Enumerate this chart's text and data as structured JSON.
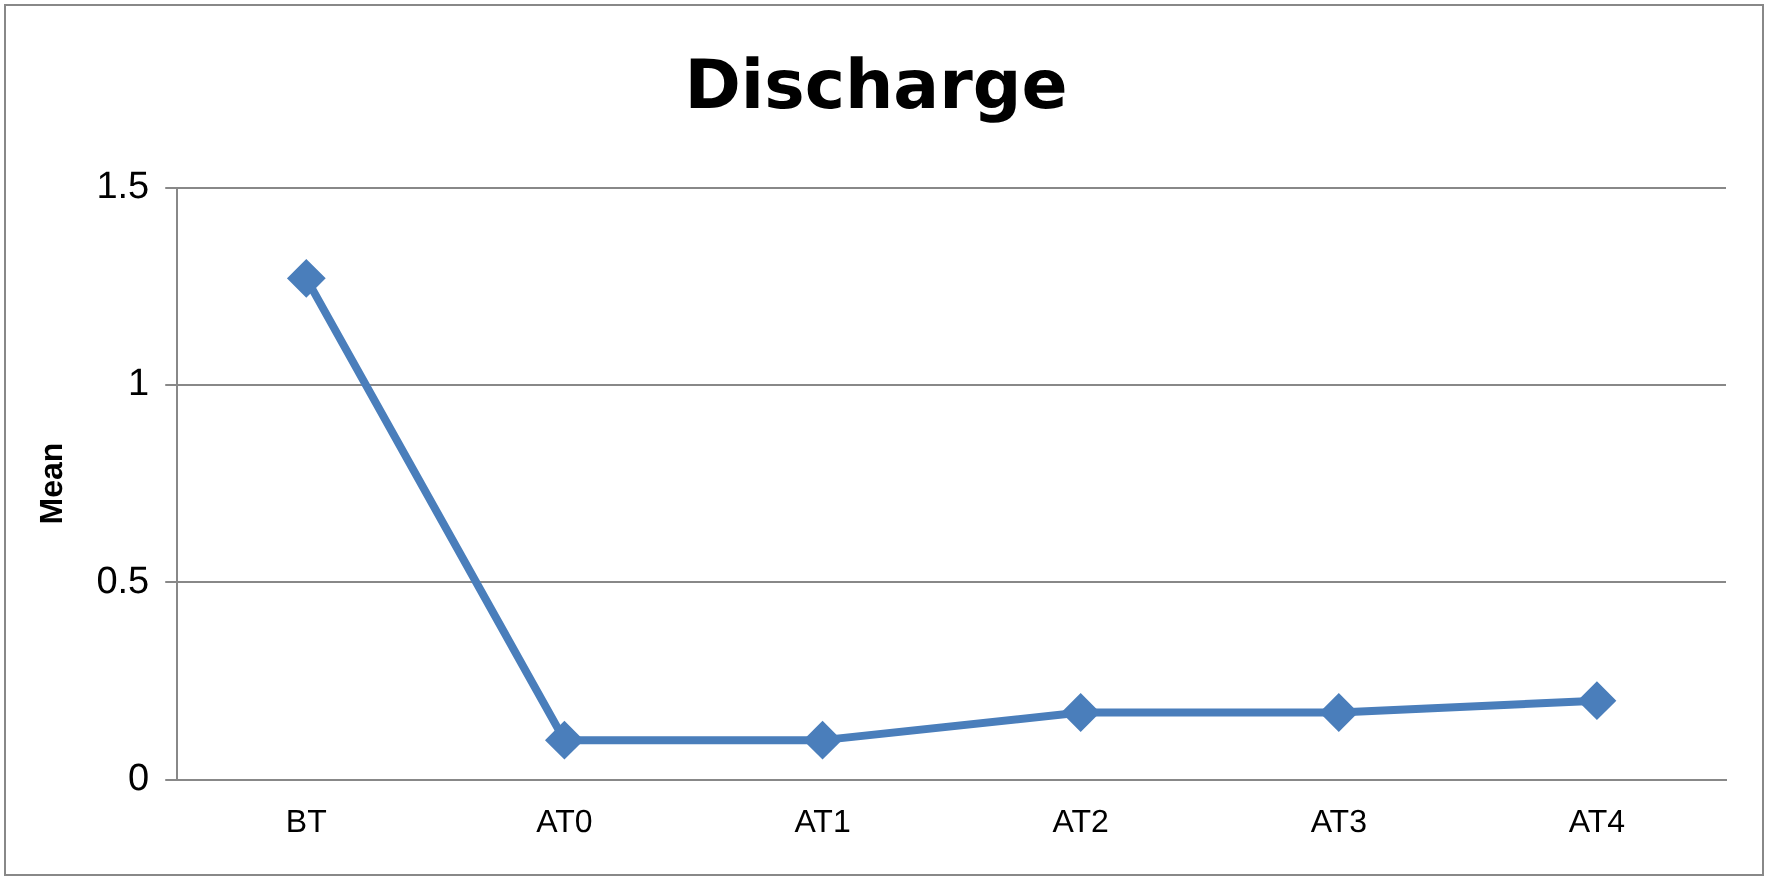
{
  "chart_data": {
    "type": "line",
    "title": "Discharge",
    "ylabel": "Mean",
    "categories": [
      "BT",
      "AT0",
      "AT1",
      "AT2",
      "AT3",
      "AT4"
    ],
    "series": [
      {
        "color": "#4a7ebb",
        "values": [
          1.27,
          0.1,
          0.1,
          0.17,
          0.17,
          0.2
        ]
      }
    ],
    "ylim": [
      0,
      1.5
    ],
    "yticks": [
      0,
      0.5,
      1,
      1.5
    ],
    "grid": "y",
    "legend": false,
    "marker": "diamond",
    "line_style": "solid"
  }
}
